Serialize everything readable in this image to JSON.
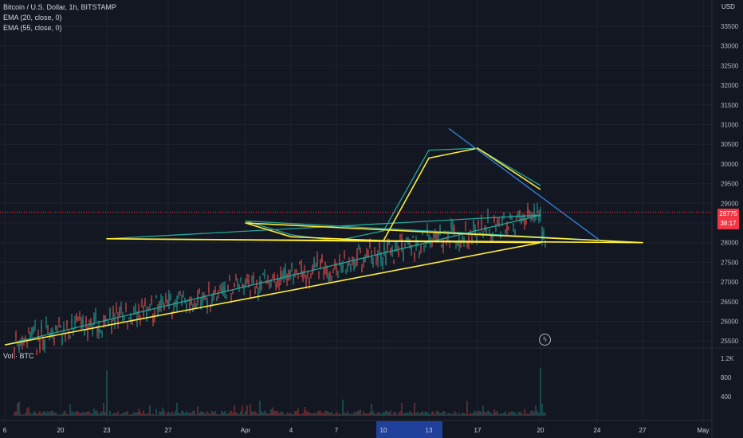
{
  "legend": {
    "symbol": "Bitcoin / U.S. Dollar, 1h, BITSTAMP",
    "ema20": "EMA (20, close, 0)",
    "ema55": "EMA (55, close, 0)",
    "volume": "Vol · BTC"
  },
  "axis_currency": "USD",
  "last_price": "28775",
  "countdown": "38:17",
  "icons": {
    "replay": "lightning-bolt-icon"
  },
  "colors": {
    "background": "#131722",
    "up": "#26a69a",
    "down": "#ef5350",
    "ema20": "#26a69a",
    "ema55": "#ffeb3b",
    "trendline": "#2f7fd6",
    "price_line": "#f23645"
  },
  "chart_data": [
    {
      "type": "candlestick",
      "title": "Bitcoin / U.S. Dollar, 1h, BITSTAMP",
      "y_ticks": [
        25500,
        26000,
        26500,
        27000,
        27500,
        28000,
        28500,
        29000,
        29500,
        30000,
        30500,
        31000,
        31500,
        32000,
        32500,
        33000,
        33500
      ],
      "ylim": [
        25400,
        34000
      ],
      "x_tick_labels": [
        "6",
        "20",
        "23",
        "27",
        "Apr",
        "4",
        "7",
        "10",
        "13",
        "17",
        "20",
        "24",
        "27",
        "May"
      ],
      "highlighted_x_range": [
        "10",
        "13"
      ],
      "grid": true,
      "trendline": {
        "from": [
          30900,
          "13"
        ],
        "to": [
          28050,
          "24"
        ]
      },
      "series": [
        {
          "name": "EMA (20, close, 0)",
          "values": [
            [
              25400,
              "6"
            ],
            [
              28700,
              "20"
            ],
            [
              28100,
              "23"
            ],
            [
              28000,
              "27"
            ],
            [
              28550,
              "Apr"
            ],
            [
              28200,
              "4"
            ],
            [
              28050,
              "7"
            ],
            [
              28300,
              "10"
            ],
            [
              30350,
              "13"
            ],
            [
              30400,
              "17"
            ],
            [
              29450,
              "20"
            ]
          ]
        },
        {
          "name": "EMA (55, close, 0)",
          "values": [
            [
              25400,
              "6"
            ],
            [
              28000,
              "20"
            ],
            [
              28100,
              "23"
            ],
            [
              28000,
              "27"
            ],
            [
              28500,
              "Apr"
            ],
            [
              28150,
              "4"
            ],
            [
              28100,
              "7"
            ],
            [
              28050,
              "10"
            ],
            [
              30150,
              "13"
            ],
            [
              30400,
              "17"
            ],
            [
              29350,
              "20"
            ]
          ]
        }
      ],
      "last_price": 28775
    },
    {
      "type": "bar",
      "title": "Vol · BTC",
      "y_ticks": [
        400,
        800,
        1200
      ],
      "ylim": [
        0,
        1300
      ],
      "peaks": [
        {
          "x": "23",
          "value": 950
        },
        {
          "x": "20",
          "value": 1000
        }
      ]
    }
  ]
}
